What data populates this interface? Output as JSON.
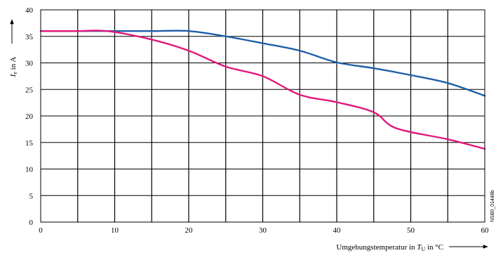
{
  "chart_data": {
    "type": "line",
    "x_axis": {
      "label_prefix": "Umgebungstemperatur in ",
      "label_symbol": "T",
      "label_subscript": "U",
      "label_unit": " in °C",
      "range": [
        0,
        60
      ],
      "tick_values": [
        0,
        10,
        20,
        30,
        40,
        50,
        60
      ],
      "tick_labels": [
        "0",
        "10",
        "20",
        "30",
        "40",
        "50",
        "60"
      ],
      "grid_step": 5
    },
    "y_axis": {
      "label_symbol": "I",
      "label_subscript": "e",
      "label_unit": " in A",
      "range": [
        0,
        40
      ],
      "tick_values": [
        0,
        5,
        10,
        15,
        20,
        25,
        30,
        35,
        40
      ],
      "tick_labels": [
        "0",
        "5",
        "10",
        "15",
        "20",
        "25",
        "30",
        "35",
        "40"
      ]
    },
    "grid": true,
    "doc_id": "NSB0_01448b",
    "series": [
      {
        "color": "#1f5fa8",
        "x": [
          0,
          5,
          10,
          15,
          20,
          25,
          30,
          35,
          40,
          45,
          50,
          55,
          60
        ],
        "y": [
          36,
          36,
          36,
          36,
          36,
          35,
          33.7,
          32.3,
          30.1,
          29,
          27.7,
          26.2,
          23.8
        ]
      },
      {
        "color": "#e0197a",
        "x": [
          0,
          5,
          9,
          15,
          20,
          25,
          30,
          35,
          40,
          45,
          48,
          55,
          60
        ],
        "y": [
          36,
          36,
          36,
          34.4,
          32.3,
          29.3,
          27.5,
          24,
          22.6,
          20.7,
          17.7,
          15.6,
          13.8
        ]
      }
    ]
  }
}
